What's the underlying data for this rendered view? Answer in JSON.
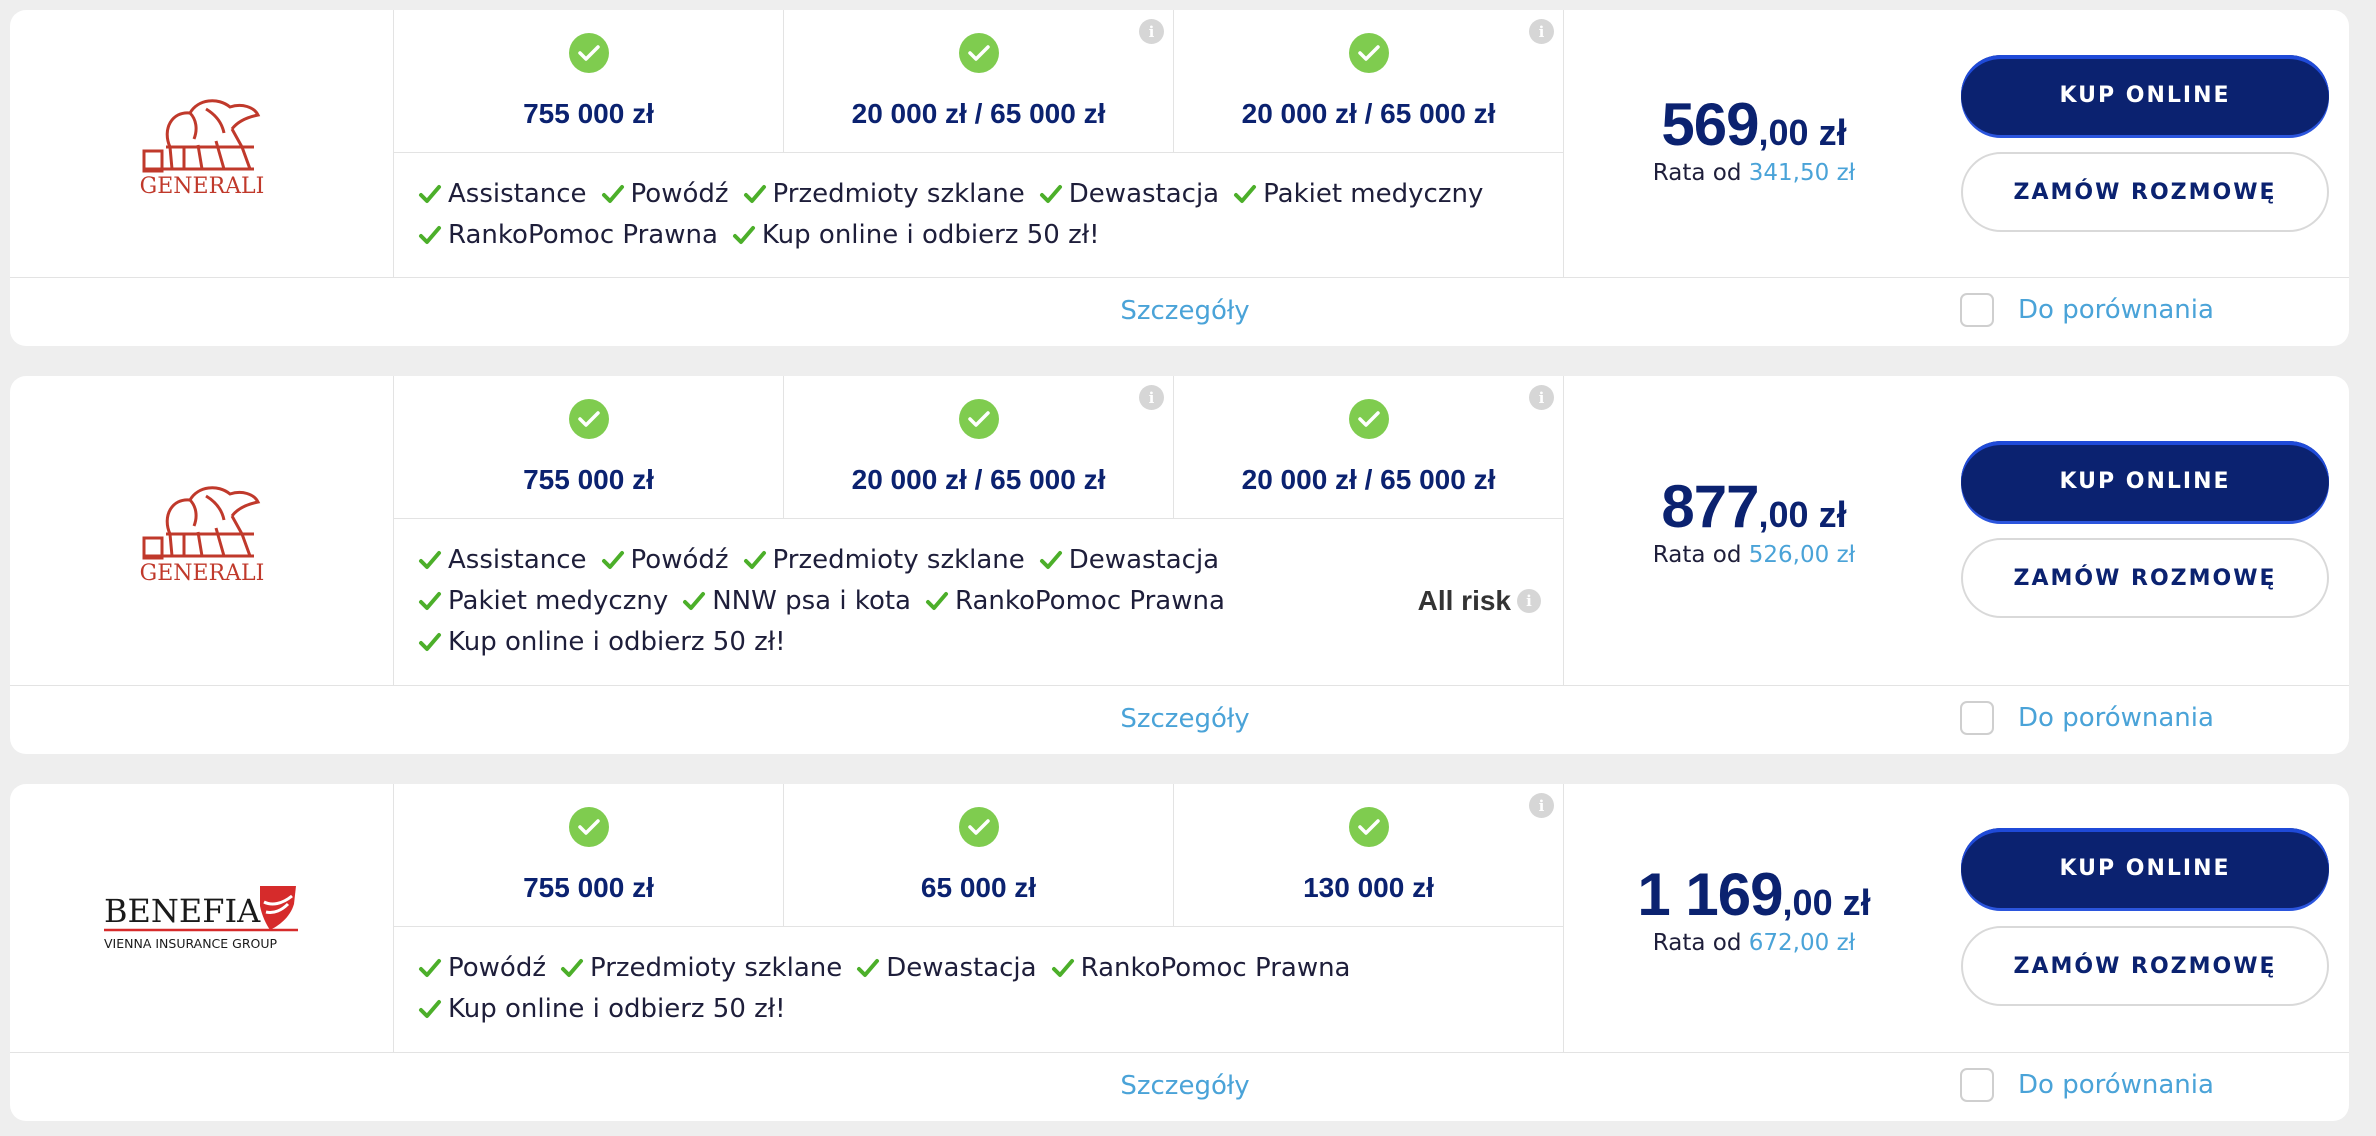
{
  "offers": [
    {
      "insurer": "GENERALI",
      "coverages": [
        "755 000 zł",
        "20 000 zł / 65 000 zł",
        "20 000 zł / 65 000 zł"
      ],
      "feature_lines": [
        [
          "Assistance",
          "Powódź",
          "Przedmioty szklane",
          "Dewastacja",
          "Pakiet medyczny"
        ],
        [
          "RankoPomoc Prawna",
          "Kup online i odbierz 50 zł!"
        ]
      ],
      "price_main": "569",
      "price_rest": ",00 zł",
      "rata_label": "Rata od",
      "rata_value": "341,50 zł"
    },
    {
      "insurer": "GENERALI",
      "coverages": [
        "755 000 zł",
        "20 000 zł / 65 000 zł",
        "20 000 zł / 65 000 zł"
      ],
      "feature_lines": [
        [
          "Assistance",
          "Powódź",
          "Przedmioty szklane",
          "Dewastacja"
        ],
        [
          "Pakiet medyczny",
          "NNW psa i kota",
          "RankoPomoc Prawna"
        ],
        [
          "Kup online i odbierz 50 zł!"
        ]
      ],
      "all_risk": "All risk",
      "price_main": "877",
      "price_rest": ",00 zł",
      "rata_label": "Rata od",
      "rata_value": "526,00 zł"
    },
    {
      "insurer": "BENEFIA",
      "insurer_sub": "VIENNA INSURANCE GROUP",
      "coverages": [
        "755 000 zł",
        "65 000 zł",
        "130 000 zł"
      ],
      "feature_lines": [
        [
          "Powódź",
          "Przedmioty szklane",
          "Dewastacja",
          "RankoPomoc Prawna"
        ],
        [
          "Kup online i odbierz 50 zł!"
        ]
      ],
      "price_main": "1 169",
      "price_rest": ",00 zł",
      "rata_label": "Rata od",
      "rata_value": "672,00 zł"
    }
  ],
  "buttons": {
    "buy": "KUP ONLINE",
    "call": "ZAMÓW ROZMOWĘ"
  },
  "footer": {
    "details": "Szczegóły",
    "compare": "Do porównania"
  },
  "info_glyph": "i",
  "colors": {
    "navy": "#0b2270",
    "green": "#7fcc4f",
    "check_green": "#4caf2a",
    "link_blue": "#4aa3d8",
    "brand_red": "#c0392b",
    "benefia_red": "#d62b2b"
  }
}
